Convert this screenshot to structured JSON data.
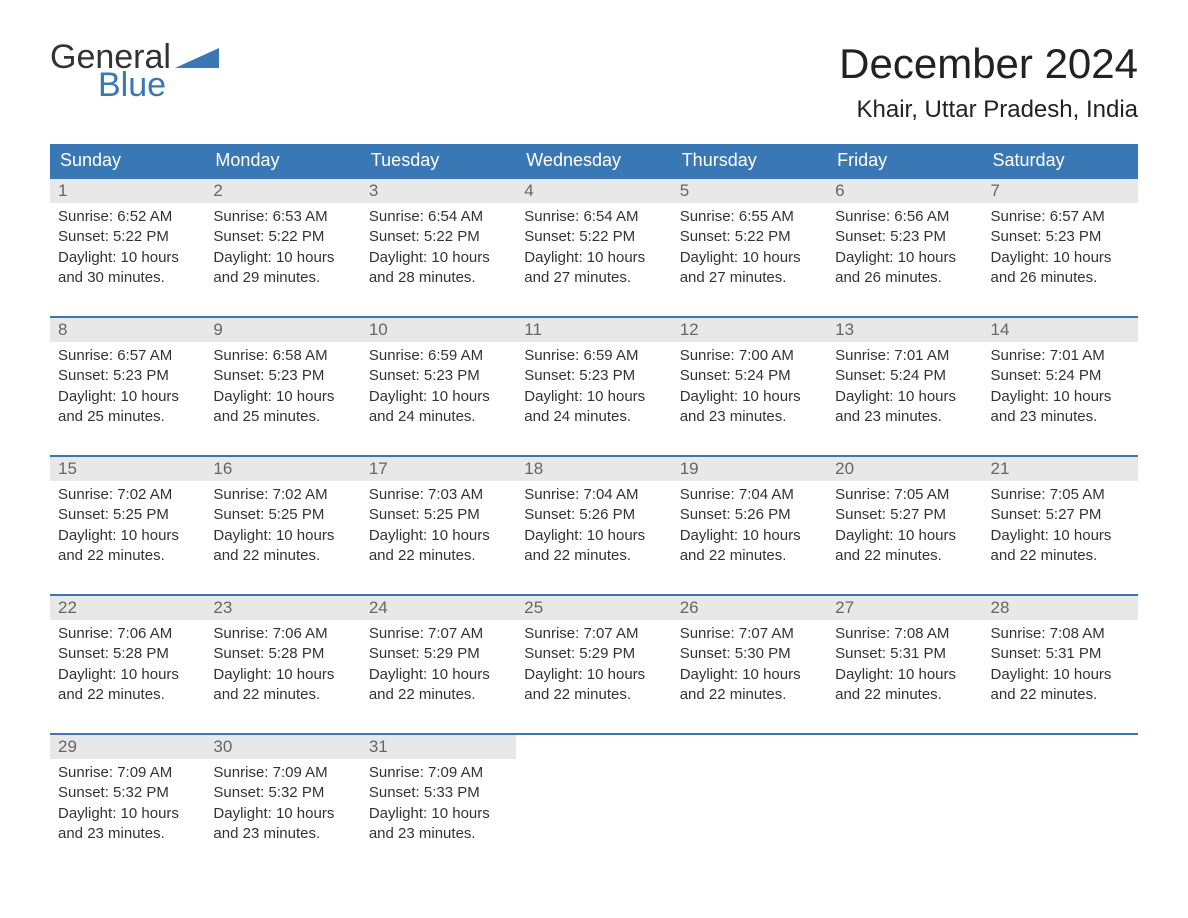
{
  "logo": {
    "general": "General",
    "blue": "Blue",
    "tri_color": "#3a78b5"
  },
  "title": "December 2024",
  "location": "Khair, Uttar Pradesh, India",
  "colors": {
    "header_bg": "#3a78b5",
    "header_text": "#ffffff",
    "daynum_bg": "#e8e8e8",
    "daynum_text": "#666666",
    "body_text": "#333333",
    "row_border": "#3a78b5",
    "page_bg": "#ffffff"
  },
  "fonts": {
    "title_pt": 42,
    "location_pt": 24,
    "header_pt": 18,
    "body_pt": 15
  },
  "day_labels": [
    "Sunday",
    "Monday",
    "Tuesday",
    "Wednesday",
    "Thursday",
    "Friday",
    "Saturday"
  ],
  "labels": {
    "sunrise": "Sunrise:",
    "sunset": "Sunset:",
    "daylight": "Daylight:"
  },
  "weeks": [
    [
      {
        "n": "1",
        "rise": "6:52 AM",
        "set": "5:22 PM",
        "dl": "10 hours and 30 minutes."
      },
      {
        "n": "2",
        "rise": "6:53 AM",
        "set": "5:22 PM",
        "dl": "10 hours and 29 minutes."
      },
      {
        "n": "3",
        "rise": "6:54 AM",
        "set": "5:22 PM",
        "dl": "10 hours and 28 minutes."
      },
      {
        "n": "4",
        "rise": "6:54 AM",
        "set": "5:22 PM",
        "dl": "10 hours and 27 minutes."
      },
      {
        "n": "5",
        "rise": "6:55 AM",
        "set": "5:22 PM",
        "dl": "10 hours and 27 minutes."
      },
      {
        "n": "6",
        "rise": "6:56 AM",
        "set": "5:23 PM",
        "dl": "10 hours and 26 minutes."
      },
      {
        "n": "7",
        "rise": "6:57 AM",
        "set": "5:23 PM",
        "dl": "10 hours and 26 minutes."
      }
    ],
    [
      {
        "n": "8",
        "rise": "6:57 AM",
        "set": "5:23 PM",
        "dl": "10 hours and 25 minutes."
      },
      {
        "n": "9",
        "rise": "6:58 AM",
        "set": "5:23 PM",
        "dl": "10 hours and 25 minutes."
      },
      {
        "n": "10",
        "rise": "6:59 AM",
        "set": "5:23 PM",
        "dl": "10 hours and 24 minutes."
      },
      {
        "n": "11",
        "rise": "6:59 AM",
        "set": "5:23 PM",
        "dl": "10 hours and 24 minutes."
      },
      {
        "n": "12",
        "rise": "7:00 AM",
        "set": "5:24 PM",
        "dl": "10 hours and 23 minutes."
      },
      {
        "n": "13",
        "rise": "7:01 AM",
        "set": "5:24 PM",
        "dl": "10 hours and 23 minutes."
      },
      {
        "n": "14",
        "rise": "7:01 AM",
        "set": "5:24 PM",
        "dl": "10 hours and 23 minutes."
      }
    ],
    [
      {
        "n": "15",
        "rise": "7:02 AM",
        "set": "5:25 PM",
        "dl": "10 hours and 22 minutes."
      },
      {
        "n": "16",
        "rise": "7:02 AM",
        "set": "5:25 PM",
        "dl": "10 hours and 22 minutes."
      },
      {
        "n": "17",
        "rise": "7:03 AM",
        "set": "5:25 PM",
        "dl": "10 hours and 22 minutes."
      },
      {
        "n": "18",
        "rise": "7:04 AM",
        "set": "5:26 PM",
        "dl": "10 hours and 22 minutes."
      },
      {
        "n": "19",
        "rise": "7:04 AM",
        "set": "5:26 PM",
        "dl": "10 hours and 22 minutes."
      },
      {
        "n": "20",
        "rise": "7:05 AM",
        "set": "5:27 PM",
        "dl": "10 hours and 22 minutes."
      },
      {
        "n": "21",
        "rise": "7:05 AM",
        "set": "5:27 PM",
        "dl": "10 hours and 22 minutes."
      }
    ],
    [
      {
        "n": "22",
        "rise": "7:06 AM",
        "set": "5:28 PM",
        "dl": "10 hours and 22 minutes."
      },
      {
        "n": "23",
        "rise": "7:06 AM",
        "set": "5:28 PM",
        "dl": "10 hours and 22 minutes."
      },
      {
        "n": "24",
        "rise": "7:07 AM",
        "set": "5:29 PM",
        "dl": "10 hours and 22 minutes."
      },
      {
        "n": "25",
        "rise": "7:07 AM",
        "set": "5:29 PM",
        "dl": "10 hours and 22 minutes."
      },
      {
        "n": "26",
        "rise": "7:07 AM",
        "set": "5:30 PM",
        "dl": "10 hours and 22 minutes."
      },
      {
        "n": "27",
        "rise": "7:08 AM",
        "set": "5:31 PM",
        "dl": "10 hours and 22 minutes."
      },
      {
        "n": "28",
        "rise": "7:08 AM",
        "set": "5:31 PM",
        "dl": "10 hours and 22 minutes."
      }
    ],
    [
      {
        "n": "29",
        "rise": "7:09 AM",
        "set": "5:32 PM",
        "dl": "10 hours and 23 minutes."
      },
      {
        "n": "30",
        "rise": "7:09 AM",
        "set": "5:32 PM",
        "dl": "10 hours and 23 minutes."
      },
      {
        "n": "31",
        "rise": "7:09 AM",
        "set": "5:33 PM",
        "dl": "10 hours and 23 minutes."
      },
      null,
      null,
      null,
      null
    ]
  ]
}
